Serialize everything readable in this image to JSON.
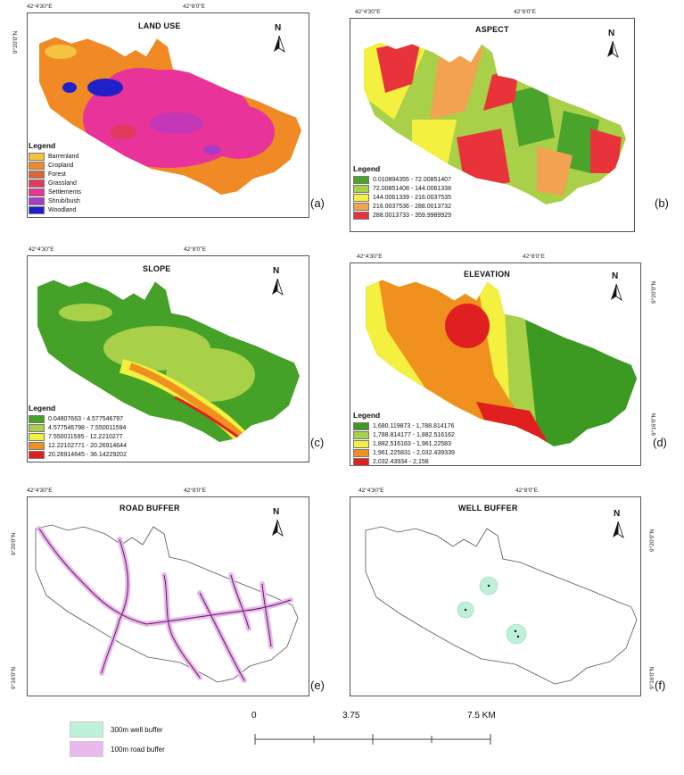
{
  "coords": {
    "lon_a": "42°4'30\"E",
    "lon_b": "42°8'0\"E",
    "lat_a": "9°20'0\"N",
    "lat_b": "9°16'0\"N"
  },
  "panels": {
    "landuse": {
      "title": "LAND USE",
      "letter": "(a)",
      "legend_title": "Legend",
      "legend": [
        {
          "label": "Barrenland",
          "color": "#f5c242"
        },
        {
          "label": "Cropland",
          "color": "#f08a24"
        },
        {
          "label": "Forest",
          "color": "#d9673a"
        },
        {
          "label": "Grassland",
          "color": "#e03a5a"
        },
        {
          "label": "Settlements",
          "color": "#e8339a"
        },
        {
          "label": "Shrub/bush",
          "color": "#a63bc8"
        },
        {
          "label": "Woodland",
          "color": "#2020c8"
        }
      ]
    },
    "aspect": {
      "title": "ASPECT",
      "letter": "(b)",
      "legend_title": "Legend",
      "legend": [
        {
          "label": "0.010894355 - 72.00851407",
          "color": "#4aa32a"
        },
        {
          "label": "72.00851408 - 144.0061338",
          "color": "#a8d048"
        },
        {
          "label": "144.0061339 - 216.0037535",
          "color": "#f4f040"
        },
        {
          "label": "216.0037536 - 288.0013732",
          "color": "#f2a250"
        },
        {
          "label": "288.0013733 - 359.9989929",
          "color": "#e8333a"
        }
      ]
    },
    "slope": {
      "title": "SLOPE",
      "letter": "(c)",
      "legend_title": "Legend",
      "legend": [
        {
          "label": "0.04807663 - 4.577546797",
          "color": "#45a128"
        },
        {
          "label": "4.577546798 - 7.550011594",
          "color": "#a8d048"
        },
        {
          "label": "7.550011595 - 12.2210277",
          "color": "#f4f040"
        },
        {
          "label": "12.22102771 - 20.26914644",
          "color": "#f0901e"
        },
        {
          "label": "20.26914645 - 36.14229202",
          "color": "#e02020"
        }
      ]
    },
    "elevation": {
      "title": "ELEVATION",
      "letter": "(d)",
      "legend_title": "Legend",
      "legend": [
        {
          "label": "1,680.119873 - 1,788.814176",
          "color": "#3c9a22"
        },
        {
          "label": "1,788.814177 - 1,882.516162",
          "color": "#a8d048"
        },
        {
          "label": "1,882.516163 - 1,961.22583",
          "color": "#f4f040"
        },
        {
          "label": "1,961.225831 - 2,032.439339",
          "color": "#f0901e"
        },
        {
          "label": "2,032.43934 - 2,158",
          "color": "#e02020"
        }
      ]
    },
    "road": {
      "title": "ROAD BUFFER",
      "letter": "(e)"
    },
    "well": {
      "title": "WELL BUFFER",
      "letter": "(f)"
    }
  },
  "north_label": "N",
  "bottom_legend": [
    {
      "label": "300m well buffer",
      "color": "#bff0d8"
    },
    {
      "label": "100m road buffer",
      "color": "#eab8ec"
    }
  ],
  "scale": {
    "labels": [
      "0",
      "3.75",
      "7.5 KM"
    ]
  }
}
